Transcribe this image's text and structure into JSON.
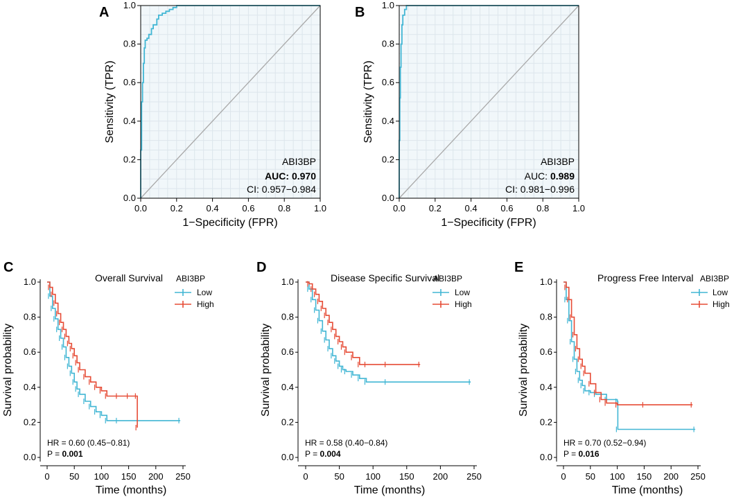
{
  "colors": {
    "roc": "#41b6d4",
    "low": "#41b6d4",
    "high": "#e64b35",
    "diag": "#a9a9a9",
    "panel_bg": "#f1f7fa",
    "grid": "#dde6ec"
  },
  "chart_data": [
    {
      "type": "line",
      "panel": "A",
      "xlabel": "1−Specificity (FPR)",
      "ylabel": "Sensitivity (TPR)",
      "xlim": [
        0,
        1
      ],
      "ylim": [
        0,
        1
      ],
      "xticks": [
        "0.0",
        "0.2",
        "0.4",
        "0.6",
        "0.8",
        "1.0"
      ],
      "yticks": [
        "0.0",
        "0.2",
        "0.4",
        "0.6",
        "0.8",
        "1.0"
      ],
      "gene": "ABI3BP",
      "auc_label": "AUC:",
      "auc_value": "0.970",
      "auc_label_bold": true,
      "ci": "CI: 0.957−0.984",
      "roc": {
        "x": [
          0,
          0,
          0.005,
          0.005,
          0.01,
          0.01,
          0.015,
          0.015,
          0.02,
          0.02,
          0.025,
          0.025,
          0.035,
          0.035,
          0.045,
          0.045,
          0.06,
          0.06,
          0.07,
          0.07,
          0.09,
          0.09,
          0.1,
          0.1,
          0.12,
          0.12,
          0.14,
          0.14,
          0.16,
          0.16,
          0.18,
          0.18,
          0.2,
          0.2,
          1.0
        ],
        "y": [
          0,
          0.25,
          0.25,
          0.5,
          0.5,
          0.6,
          0.6,
          0.7,
          0.7,
          0.78,
          0.78,
          0.82,
          0.82,
          0.83,
          0.83,
          0.85,
          0.85,
          0.88,
          0.88,
          0.9,
          0.9,
          0.93,
          0.93,
          0.95,
          0.95,
          0.96,
          0.96,
          0.97,
          0.97,
          0.98,
          0.98,
          0.99,
          0.99,
          1.0,
          1.0
        ]
      }
    },
    {
      "type": "line",
      "panel": "B",
      "xlabel": "1−Specificity (FPR)",
      "ylabel": "Sensitivity (TPR)",
      "xlim": [
        0,
        1
      ],
      "ylim": [
        0,
        1
      ],
      "xticks": [
        "0.0",
        "0.2",
        "0.4",
        "0.6",
        "0.8",
        "1.0"
      ],
      "yticks": [
        "0.0",
        "0.2",
        "0.4",
        "0.6",
        "0.8",
        "1.0"
      ],
      "gene": "ABI3BP",
      "auc_label": "AUC:",
      "auc_value": "0.989",
      "auc_label_bold": false,
      "ci": "CI: 0.981−0.996",
      "roc": {
        "x": [
          0,
          0,
          0.003,
          0.003,
          0.006,
          0.006,
          0.01,
          0.01,
          0.015,
          0.015,
          0.02,
          0.02,
          0.03,
          0.03,
          0.04,
          0.04,
          1.0
        ],
        "y": [
          0,
          0.3,
          0.3,
          0.52,
          0.52,
          0.68,
          0.68,
          0.8,
          0.8,
          0.9,
          0.9,
          0.95,
          0.95,
          0.98,
          0.98,
          1.0,
          1.0
        ]
      }
    },
    {
      "type": "line",
      "panel": "C",
      "title": "Overall Survival",
      "legend_title": "ABI3BP",
      "legend": [
        "Low",
        "High"
      ],
      "xlabel": "Time (months)",
      "ylabel": "Survival probability",
      "xlim": [
        0,
        250
      ],
      "ylim": [
        0,
        1
      ],
      "xticks": [
        "0",
        "50",
        "100",
        "150",
        "200",
        "250"
      ],
      "yticks": [
        "0.0",
        "0.2",
        "0.4",
        "0.6",
        "0.8",
        "1.0"
      ],
      "hr": "HR = 0.60 (0.45−0.81)",
      "p_label": "P = ",
      "p_value": "0.001",
      "series": [
        {
          "name": "Low",
          "x": [
            0,
            5,
            10,
            15,
            20,
            25,
            30,
            35,
            40,
            45,
            50,
            55,
            60,
            70,
            80,
            90,
            100,
            110,
            130,
            245
          ],
          "y": [
            1.0,
            0.92,
            0.85,
            0.79,
            0.73,
            0.68,
            0.63,
            0.57,
            0.52,
            0.48,
            0.43,
            0.39,
            0.36,
            0.32,
            0.29,
            0.26,
            0.24,
            0.21,
            0.21,
            0.21
          ]
        },
        {
          "name": "High",
          "x": [
            0,
            5,
            10,
            15,
            20,
            25,
            30,
            35,
            40,
            45,
            50,
            55,
            60,
            70,
            80,
            90,
            100,
            110,
            130,
            150,
            165,
            166
          ],
          "y": [
            1.0,
            0.97,
            0.93,
            0.88,
            0.82,
            0.77,
            0.73,
            0.69,
            0.65,
            0.62,
            0.58,
            0.54,
            0.5,
            0.46,
            0.43,
            0.4,
            0.38,
            0.35,
            0.35,
            0.35,
            0.35,
            0.17
          ]
        }
      ]
    },
    {
      "type": "line",
      "panel": "D",
      "title": "Disease Specific Survival",
      "legend_title": "ABI3BP",
      "legend": [
        "Low",
        "High"
      ],
      "xlabel": "Time (months)",
      "ylabel": "Survival probability",
      "xlim": [
        0,
        250
      ],
      "ylim": [
        0,
        1
      ],
      "xticks": [
        "0",
        "50",
        "100",
        "150",
        "200",
        "250"
      ],
      "yticks": [
        "0.0",
        "0.2",
        "0.4",
        "0.6",
        "0.8",
        "1.0"
      ],
      "hr": "HR = 0.58 (0.40−0.84)",
      "p_label": "P = ",
      "p_value": "0.004",
      "series": [
        {
          "name": "Low",
          "x": [
            0,
            5,
            10,
            15,
            20,
            25,
            30,
            35,
            40,
            45,
            50,
            55,
            60,
            70,
            80,
            90,
            120,
            245
          ],
          "y": [
            1.0,
            0.96,
            0.9,
            0.84,
            0.78,
            0.72,
            0.67,
            0.62,
            0.58,
            0.55,
            0.52,
            0.5,
            0.49,
            0.47,
            0.45,
            0.43,
            0.43,
            0.43
          ]
        },
        {
          "name": "High",
          "x": [
            0,
            5,
            10,
            15,
            20,
            25,
            30,
            35,
            40,
            45,
            50,
            55,
            60,
            70,
            80,
            90,
            120,
            170
          ],
          "y": [
            1.0,
            0.99,
            0.96,
            0.93,
            0.89,
            0.85,
            0.81,
            0.77,
            0.73,
            0.69,
            0.66,
            0.63,
            0.6,
            0.57,
            0.53,
            0.53,
            0.53,
            0.53
          ]
        }
      ]
    },
    {
      "type": "line",
      "panel": "E",
      "title": "Progress Free Interval",
      "legend_title": "ABI3BP",
      "legend": [
        "Low",
        "High"
      ],
      "xlabel": "Time (months)",
      "ylabel": "Survival probability",
      "xlim": [
        0,
        250
      ],
      "ylim": [
        0,
        1
      ],
      "xticks": [
        "0",
        "50",
        "100",
        "150",
        "200",
        "250"
      ],
      "yticks": [
        "0.0",
        "0.2",
        "0.4",
        "0.6",
        "0.8",
        "1.0"
      ],
      "hr": "HR = 0.70 (0.52−0.94)",
      "p_label": "P = ",
      "p_value": "0.016",
      "series": [
        {
          "name": "Low",
          "x": [
            0,
            5,
            10,
            15,
            20,
            25,
            30,
            35,
            40,
            50,
            60,
            80,
            100,
            101,
            245
          ],
          "y": [
            1.0,
            0.9,
            0.78,
            0.66,
            0.56,
            0.49,
            0.44,
            0.41,
            0.38,
            0.37,
            0.36,
            0.33,
            0.32,
            0.16,
            0.16
          ]
        },
        {
          "name": "High",
          "x": [
            0,
            5,
            10,
            15,
            20,
            25,
            30,
            35,
            40,
            50,
            60,
            70,
            80,
            100,
            150,
            240
          ],
          "y": [
            1.0,
            0.97,
            0.9,
            0.8,
            0.7,
            0.62,
            0.56,
            0.52,
            0.48,
            0.42,
            0.37,
            0.33,
            0.31,
            0.3,
            0.3,
            0.3
          ]
        }
      ]
    }
  ]
}
